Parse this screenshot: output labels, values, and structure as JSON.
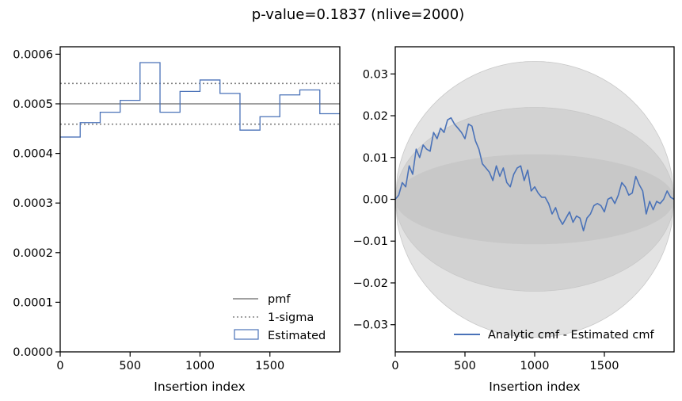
{
  "figure": {
    "suptitle": "p-value=0.1837 (nlive=2000)"
  },
  "chart_data": [
    {
      "type": "step",
      "xlabel": "Insertion index",
      "ylabel": "",
      "xlim": [
        0,
        2000
      ],
      "ylim": [
        0,
        0.000615
      ],
      "x_ticks": [
        0,
        500,
        1000,
        1500
      ],
      "x_tick_labels": [
        "0",
        "500",
        "1000",
        "1500"
      ],
      "y_ticks": [
        0,
        0.0001,
        0.0002,
        0.0003,
        0.0004,
        0.0005,
        0.0006
      ],
      "y_tick_labels": [
        "0.0000",
        "0.0001",
        "0.0002",
        "0.0003",
        "0.0004",
        "0.0005",
        "0.0006"
      ],
      "legend": {
        "placement": "lower-right",
        "entries": [
          "pmf",
          "1-sigma",
          "Estimated"
        ]
      },
      "pmf": 0.0005,
      "sigma_upper": 0.000541,
      "sigma_lower": 0.000459,
      "bin_edges": [
        0,
        143,
        286,
        429,
        571,
        714,
        857,
        1000,
        1143,
        1286,
        1429,
        1571,
        1714,
        1857,
        2000
      ],
      "bin_values": [
        0.000433,
        0.000462,
        0.000483,
        0.000507,
        0.000583,
        0.000483,
        0.000525,
        0.000548,
        0.000521,
        0.000447,
        0.000474,
        0.000518,
        0.000528,
        0.00048
      ],
      "colors": {
        "pmf": "#808080",
        "sigma": "#808080",
        "estimated": "#4a72b8"
      }
    },
    {
      "type": "line",
      "xlabel": "Insertion index",
      "ylabel": "",
      "xlim": [
        0,
        2000
      ],
      "ylim": [
        -0.0365,
        0.0365
      ],
      "x_ticks": [
        0,
        500,
        1000,
        1500
      ],
      "x_tick_labels": [
        "0",
        "500",
        "1000",
        "1500"
      ],
      "y_ticks": [
        -0.03,
        -0.02,
        -0.01,
        0,
        0.01,
        0.02,
        0.03
      ],
      "y_tick_labels": [
        "−0.03",
        "−0.02",
        "−0.01",
        "0.00",
        "0.01",
        "0.02",
        "0.03"
      ],
      "legend": {
        "placement": "lower-right",
        "entries": [
          "Analytic cmf - Estimated cmf"
        ]
      },
      "bands": [
        {
          "sigma": 1,
          "half_width_at_center": 0.0107
        },
        {
          "sigma": 2,
          "half_width_at_center": 0.022
        },
        {
          "sigma": 3,
          "half_width_at_center": 0.033
        }
      ],
      "series": [
        {
          "x": [
            0,
            25,
            50,
            75,
            100,
            125,
            150,
            175,
            200,
            225,
            250,
            275,
            300,
            325,
            350,
            375,
            400,
            425,
            450,
            475,
            500,
            525,
            550,
            575,
            600,
            625,
            650,
            675,
            700,
            725,
            750,
            775,
            800,
            825,
            850,
            875,
            900,
            925,
            950,
            975,
            1000,
            1025,
            1050,
            1075,
            1100,
            1125,
            1150,
            1175,
            1200,
            1225,
            1250,
            1275,
            1300,
            1325,
            1350,
            1375,
            1400,
            1425,
            1450,
            1475,
            1500,
            1525,
            1550,
            1575,
            1600,
            1625,
            1650,
            1675,
            1700,
            1725,
            1750,
            1775,
            1800,
            1825,
            1850,
            1875,
            1900,
            1925,
            1950,
            1975,
            2000
          ],
          "y": [
            0,
            0.001,
            0.004,
            0.003,
            0.008,
            0.006,
            0.012,
            0.01,
            0.013,
            0.012,
            0.0115,
            0.016,
            0.0145,
            0.017,
            0.016,
            0.019,
            0.0195,
            0.018,
            0.017,
            0.016,
            0.0145,
            0.018,
            0.0175,
            0.014,
            0.012,
            0.0085,
            0.0075,
            0.0065,
            0.0045,
            0.008,
            0.0055,
            0.0075,
            0.004,
            0.003,
            0.006,
            0.0075,
            0.008,
            0.0045,
            0.007,
            0.002,
            0.003,
            0.0015,
            0.0005,
            0.0005,
            -0.001,
            -0.0035,
            -0.002,
            -0.0045,
            -0.006,
            -0.0045,
            -0.003,
            -0.0055,
            -0.004,
            -0.0045,
            -0.0075,
            -0.0045,
            -0.0035,
            -0.0015,
            -0.001,
            -0.0015,
            -0.003,
            0.0,
            0.0005,
            -0.001,
            0.001,
            0.004,
            0.003,
            0.001,
            0.0015,
            0.0055,
            0.0035,
            0.002,
            -0.0035,
            -0.0005,
            -0.0025,
            -0.0005,
            -0.001,
            0.0,
            0.002,
            0.0005,
            0
          ]
        }
      ],
      "colors": {
        "line": "#4a72b8",
        "band": "#b8b8b8"
      }
    }
  ]
}
